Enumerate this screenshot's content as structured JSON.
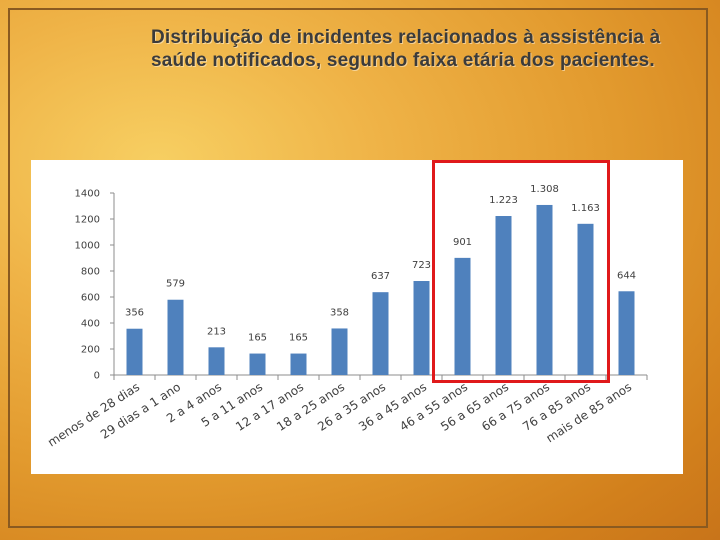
{
  "slide": {
    "title": "Distribuição de incidentes relacionados à assistência à saúde notificados, segundo faixa etária dos pacientes."
  },
  "chart_data": {
    "type": "bar",
    "categories": [
      "menos de 28 dias",
      "29 dias a 1 ano",
      "2 a 4 anos",
      "5 a 11 anos",
      "12 a 17 anos",
      "18 a 25 anos",
      "26 a 35 anos",
      "36 a 45 anos",
      "46 a 55 anos",
      "56 a 65 anos",
      "66 a 75 anos",
      "76 a 85 anos",
      "mais de 85 anos"
    ],
    "values": [
      356,
      579,
      213,
      165,
      165,
      358,
      637,
      723,
      901,
      1223,
      1308,
      1163,
      644
    ],
    "value_labels": [
      "356",
      "579",
      "213",
      "165",
      "165",
      "358",
      "637",
      "723",
      "901",
      "1.223",
      "1.308",
      "1.163",
      "644"
    ],
    "yticks": [
      "0",
      "200",
      "400",
      "600",
      "800",
      "1000",
      "1200",
      "1400"
    ],
    "ylim": [
      0,
      1400
    ],
    "grid": false,
    "legend": "none",
    "bar_color": "#4f81bd",
    "highlight": {
      "categories": [
        "46 a 55 anos",
        "56 a 65 anos",
        "66 a 75 anos",
        "76 a 85 anos"
      ],
      "color": "#e0191b"
    }
  }
}
